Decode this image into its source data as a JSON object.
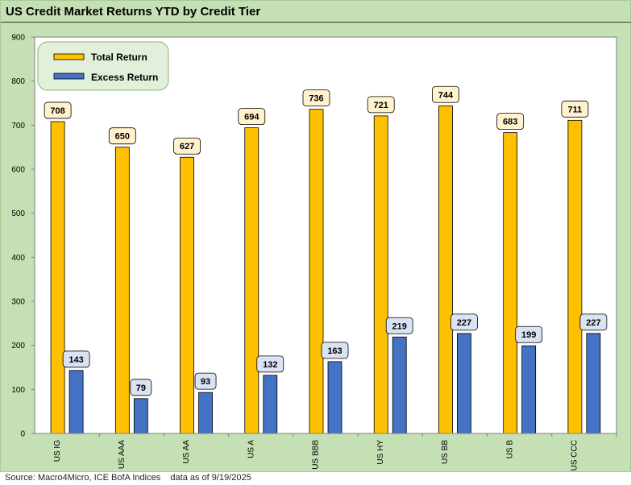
{
  "chart_data": {
    "type": "bar",
    "title": "US Credit Market Returns YTD by Credit Tier",
    "categories": [
      "US IG",
      "US AAA",
      "US AA",
      "US A",
      "US BBB",
      "US HY",
      "US BB",
      "US B",
      "US CCC"
    ],
    "series": [
      {
        "name": "Total Return",
        "color": "#ffc000",
        "label_fill": "#fff2cc",
        "values": [
          708,
          650,
          627,
          694,
          736,
          721,
          744,
          683,
          711
        ]
      },
      {
        "name": "Excess Return",
        "color": "#4472c4",
        "label_fill": "#dae3f3",
        "values": [
          143,
          79,
          93,
          132,
          163,
          219,
          227,
          199,
          227
        ]
      }
    ],
    "ylim": [
      0,
      900
    ],
    "yticks": [
      0,
      100,
      200,
      300,
      400,
      500,
      600,
      700,
      800,
      900
    ],
    "xlabel": "",
    "ylabel": "",
    "grid": false,
    "legend": "top-left"
  },
  "source": "Source: Macro4Micro, ICE BofA Indices    data as of 9/19/2025"
}
